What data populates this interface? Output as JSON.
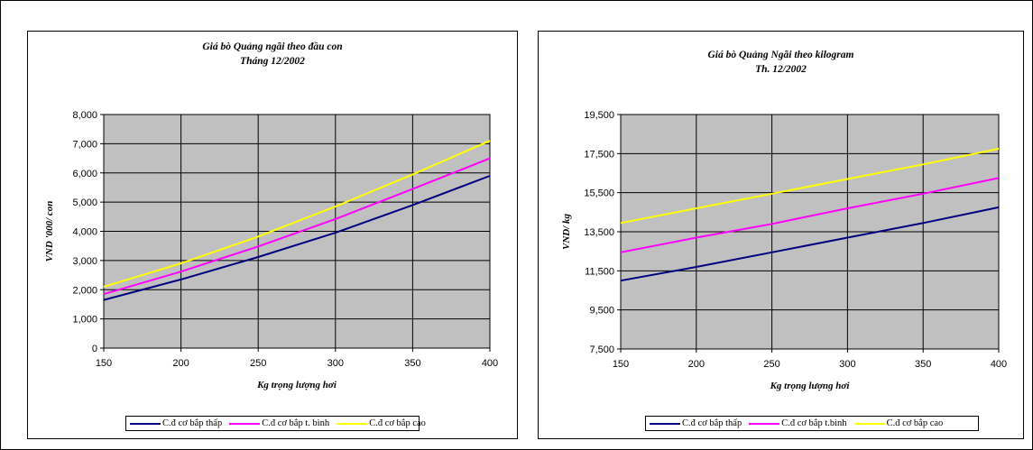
{
  "chart_data": [
    {
      "type": "line",
      "title": "Giá bò Quảng ngãi theo đầu con",
      "subtitle": "Tháng 12/2002",
      "xlabel": "Kg trọng lượng hơi",
      "ylabel": "VND '000/ con",
      "xlim": [
        150,
        400
      ],
      "ylim": [
        0,
        8000
      ],
      "x_ticks": [
        150,
        200,
        250,
        300,
        350,
        400
      ],
      "y_ticks": [
        0,
        1000,
        2000,
        3000,
        4000,
        5000,
        6000,
        7000,
        8000
      ],
      "x_tick_labels": [
        "150",
        "200",
        "250",
        "300",
        "350",
        "400"
      ],
      "y_tick_labels": [
        "0",
        "1,000",
        "2,000",
        "3,000",
        "4,000",
        "5,000",
        "6,000",
        "7,000",
        "8,000"
      ],
      "grid": true,
      "legend_position": "bottom",
      "x": [
        150,
        200,
        250,
        300,
        350,
        400
      ],
      "series": [
        {
          "name": "C.đ cơ bắp thấp",
          "color": "#000080",
          "values": [
            1650,
            2350,
            3120,
            3950,
            4900,
            5900
          ]
        },
        {
          "name": "C.đ cơ bắp t. bình",
          "color": "#ff00ff",
          "values": [
            1850,
            2620,
            3480,
            4420,
            5450,
            6500
          ]
        },
        {
          "name": "C.đ cơ bắp cao",
          "color": "#ffff00",
          "values": [
            2100,
            2900,
            3820,
            4850,
            5950,
            7100
          ]
        }
      ]
    },
    {
      "type": "line",
      "title": "Giá bò Quảng Ngãi theo kilogram",
      "subtitle": "Th. 12/2002",
      "xlabel": "Kg trọng lượng hơi",
      "ylabel": "VND/ kg",
      "xlim": [
        150,
        400
      ],
      "ylim": [
        7500,
        19500
      ],
      "x_ticks": [
        150,
        200,
        250,
        300,
        350,
        400
      ],
      "y_ticks": [
        7500,
        9500,
        11500,
        13500,
        15500,
        17500,
        19500
      ],
      "x_tick_labels": [
        "150",
        "200",
        "250",
        "300",
        "350",
        "400"
      ],
      "y_tick_labels": [
        "7,500",
        "9,500",
        "11,500",
        "13,500",
        "15,500",
        "17,500",
        "19,500"
      ],
      "grid": true,
      "legend_position": "bottom",
      "x": [
        150,
        200,
        250,
        300,
        350,
        400
      ],
      "series": [
        {
          "name": "C.đ cơ bắp thấp",
          "color": "#000080",
          "values": [
            11000,
            11700,
            12450,
            13200,
            13950,
            14750
          ]
        },
        {
          "name": "C.đ cơ bắp t.bình",
          "color": "#ff00ff",
          "values": [
            12450,
            13200,
            13900,
            14700,
            15450,
            16250
          ]
        },
        {
          "name": "C.đ cơ bắp cao",
          "color": "#ffff00",
          "values": [
            13950,
            14700,
            15450,
            16200,
            16950,
            17750
          ]
        }
      ]
    }
  ]
}
